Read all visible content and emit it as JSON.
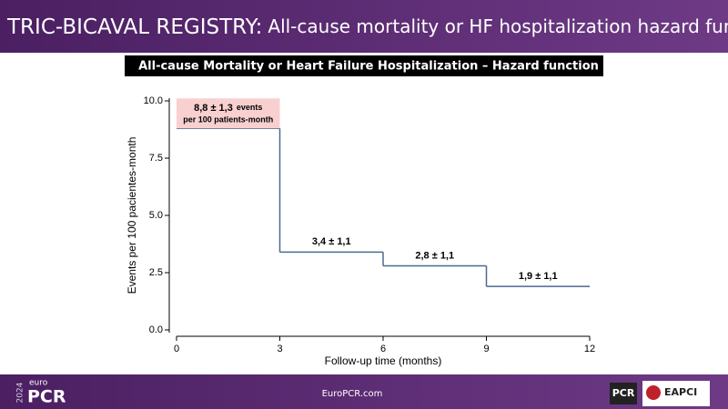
{
  "header": {
    "title_bold": "TRIC-BICAVAL REGISTRY:",
    "title_rest": "All-cause mortality or HF hospitalization hazard function"
  },
  "chart_data": {
    "type": "step",
    "title": "All-cause Mortality or Heart Failure Hospitalization – Hazard function",
    "x_label": "Follow-up time (months)",
    "y_label": "Events per 100 pacientes-month",
    "x": [
      0,
      3,
      6,
      9
    ],
    "values": [
      8.8,
      3.4,
      2.8,
      1.9
    ],
    "value_labels": [
      "8,8 ± 1,3",
      "3,4 ± 1,1",
      "2,8 ± 1,1",
      "1,9 ± 1,1"
    ],
    "annotations": [
      "events",
      "per 100 patients-month"
    ],
    "color": "#4a6a8f",
    "xlim": [
      0,
      12
    ],
    "xticks": [
      0,
      3,
      6,
      9,
      12
    ],
    "ylim": [
      0,
      10
    ],
    "yticks": [
      {
        "value": 0,
        "label": "0.0"
      },
      2.5,
      {
        "value": 5,
        "label": "5.0"
      },
      7.5,
      {
        "value": 10,
        "label": "10.0"
      }
    ]
  },
  "footer": {
    "year": "2024",
    "euro": "euro",
    "brand": "PCR",
    "url": "EuroPCR.com",
    "badge": "PCR",
    "eapci": "EAPCI"
  }
}
